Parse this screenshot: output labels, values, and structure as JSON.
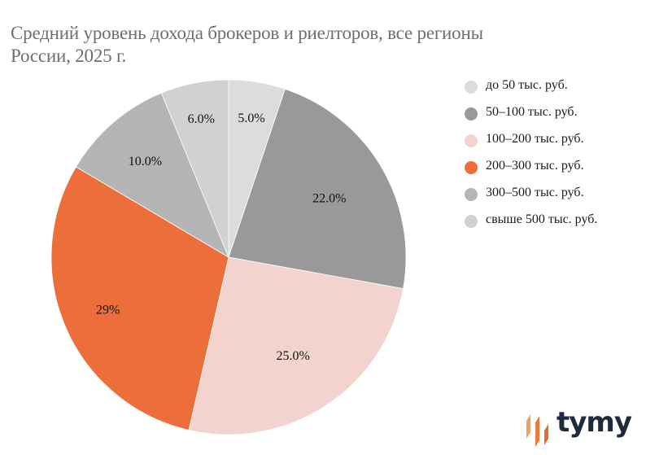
{
  "chart_data": {
    "type": "pie",
    "title": "Средний уровень дохода брокеров и риелторов, все регионы России, 2025 г.",
    "title_lines": [
      "Средний уровень дохода брокеров и риелторов, все регионы",
      "России, 2025 г."
    ],
    "start_angle": "top",
    "direction": "clockwise",
    "legend_position": "right",
    "slices": [
      {
        "name": "до 50 тыс. руб.",
        "value": 5.0,
        "label": "5.0%",
        "color": "#dcdcdc"
      },
      {
        "name": "50–100 тыс. руб.",
        "value": 22.0,
        "label": "22.0%",
        "color": "#999999"
      },
      {
        "name": "100–200 тыс. руб.",
        "value": 25.0,
        "label": "25.0%",
        "color": "#f2d3cd"
      },
      {
        "name": "200–300 тыс. руб.",
        "value": 29.0,
        "label": "29%",
        "color": "#ec6e3a"
      },
      {
        "name": "300–500 тыс. руб.",
        "value": 10.0,
        "label": "10.0%",
        "color": "#b5b5b5"
      },
      {
        "name": "свыше 500 тыс. руб.",
        "value": 6.0,
        "label": "6.0%",
        "color": "#d1d1d1"
      }
    ]
  },
  "logo": {
    "text": "tymy",
    "accent": "#ec7a3a",
    "text_color": "#1f2a3c"
  }
}
